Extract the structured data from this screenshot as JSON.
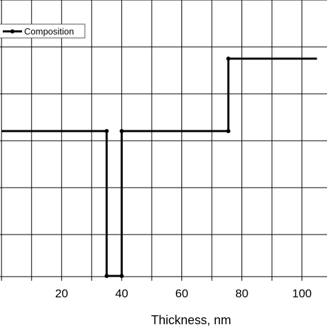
{
  "chart_data": {
    "type": "line",
    "xlabel": "Thickness, nm",
    "ylabel": "",
    "title": "",
    "x_ticks": [
      20,
      40,
      60,
      80,
      100
    ],
    "xlim": [
      0,
      105
    ],
    "ylim": [
      0,
      1
    ],
    "grid": true,
    "legend": {
      "placement": "top-left",
      "entries": [
        "Composition"
      ]
    },
    "series": [
      {
        "name": "Composition",
        "x": [
          0,
          35,
          35,
          40,
          40,
          75.5,
          75.5,
          105
        ],
        "y": [
          0.5,
          0.5,
          0,
          0,
          0.5,
          0.5,
          0.75,
          0.75
        ],
        "markers_x": [
          35,
          35,
          40,
          40,
          75.5
        ]
      }
    ]
  }
}
